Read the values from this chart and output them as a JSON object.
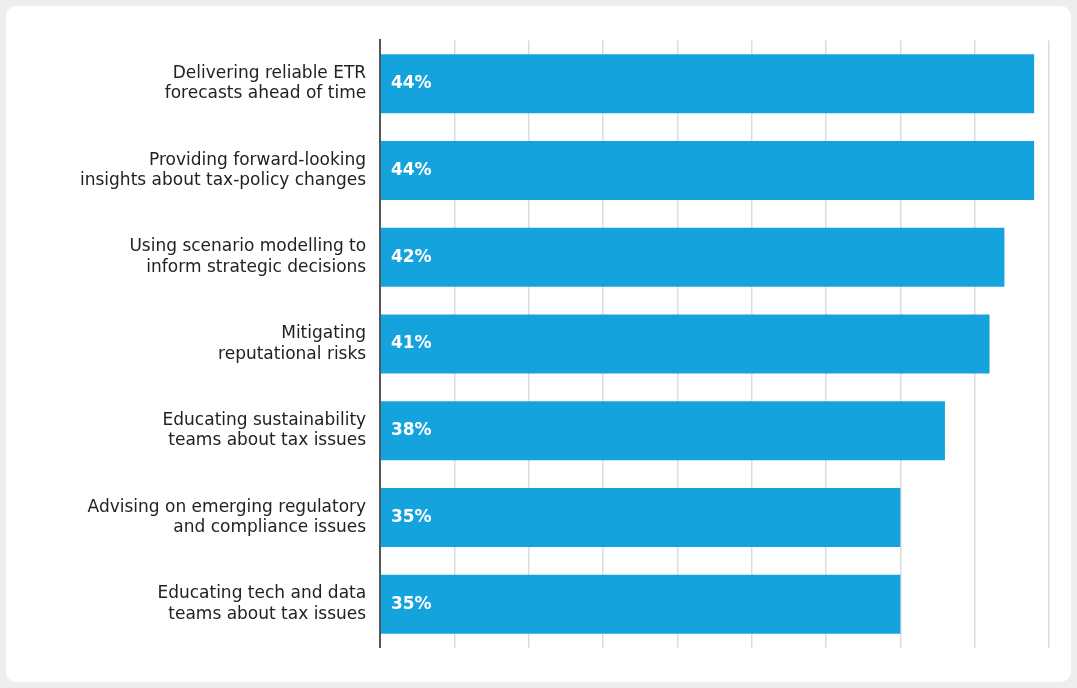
{
  "chart_data": {
    "type": "bar",
    "orientation": "horizontal",
    "categories": [
      "Delivering reliable ETR\nforecasts ahead of time",
      "Providing forward-looking\ninsights about tax-policy changes",
      "Using scenario modelling to\ninform strategic decisions",
      "Mitigating\nreputational risks",
      "Educating sustainability\nteams about tax issues",
      "Advising on emerging regulatory\nand compliance issues",
      "Educating tech and data\nteams about tax issues"
    ],
    "values": [
      44,
      44,
      42,
      41,
      38,
      35,
      35
    ],
    "value_labels": [
      "44%",
      "44%",
      "42%",
      "41%",
      "38%",
      "35%",
      "35%"
    ],
    "color": "#14a3dc",
    "xlim": [
      0,
      45
    ],
    "xticks": [
      {
        "value": 0,
        "label": null
      },
      {
        "value": 5,
        "label": null
      },
      {
        "value": 10,
        "label": null
      },
      {
        "value": 15,
        "label": null
      },
      {
        "value": 20,
        "label": null
      },
      {
        "value": 25,
        "label": null
      },
      {
        "value": 30,
        "label": null
      },
      {
        "value": 35,
        "label": null
      },
      {
        "value": 40,
        "label": null
      },
      {
        "value": 45,
        "label": null
      }
    ],
    "grid": "x",
    "tick_labels": "y",
    "legend": false
  }
}
